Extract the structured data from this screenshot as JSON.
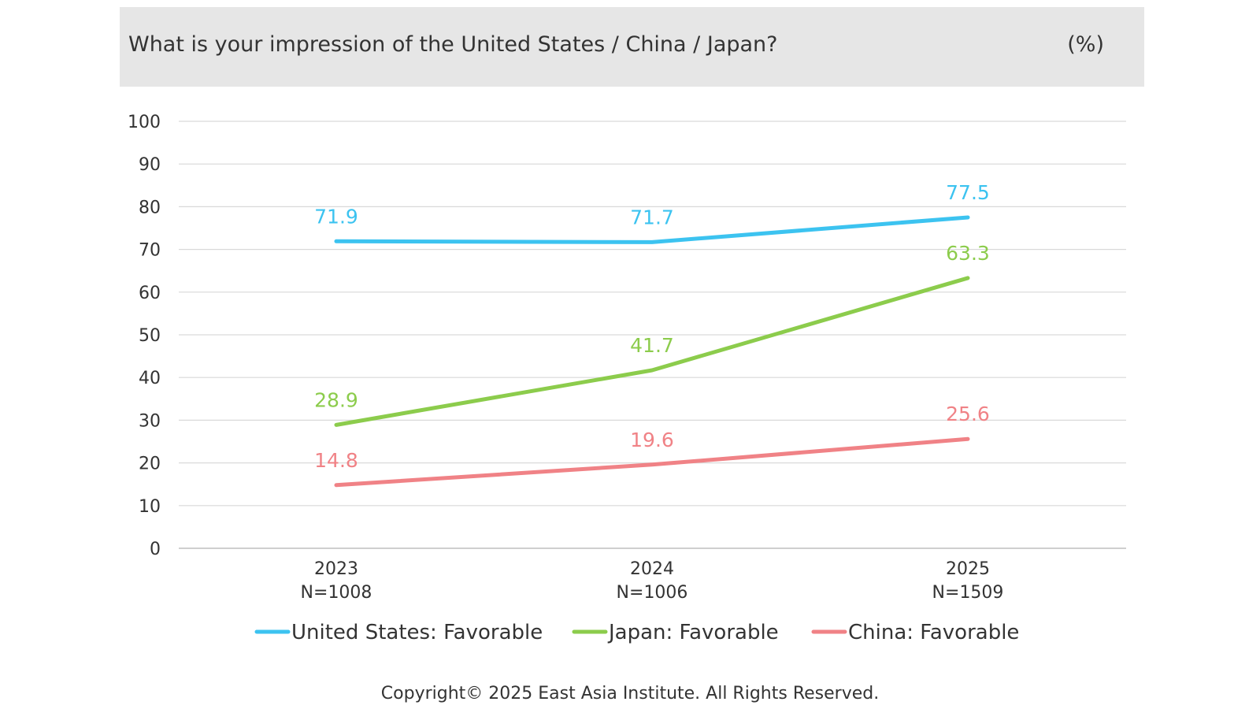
{
  "header": {
    "title": "What is your impression of the United States / China / Japan?",
    "unit": "(%)"
  },
  "chart_data": {
    "type": "line",
    "title": "What is your impression of the United States / China / Japan?",
    "xlabel": "",
    "ylabel": "",
    "ylim": [
      0,
      100
    ],
    "yticks": [
      "0",
      "10",
      "20",
      "30",
      "40",
      "50",
      "60",
      "70",
      "80",
      "90",
      "100"
    ],
    "categories": [
      "2023",
      "2024",
      "2025"
    ],
    "sample_sizes": [
      "N=1008",
      "N=1006",
      "N=1509"
    ],
    "grid": true,
    "legend_position": "bottom",
    "series": [
      {
        "name": "United States: Favorable",
        "color": "#3cc3f0",
        "values": [
          71.9,
          71.7,
          77.5
        ],
        "labels": [
          "71.9",
          "71.7",
          "77.5"
        ]
      },
      {
        "name": "Japan: Favorable",
        "color": "#8ccc4c",
        "values": [
          28.9,
          41.7,
          63.3
        ],
        "labels": [
          "28.9",
          "41.7",
          "63.3"
        ]
      },
      {
        "name": "China: Favorable",
        "color": "#f08286",
        "values": [
          14.8,
          19.6,
          25.6
        ],
        "labels": [
          "14.8",
          "19.6",
          "25.6"
        ]
      }
    ]
  },
  "footer": {
    "copyright": "Copyright© 2025 East Asia Institute. All Rights Reserved."
  }
}
